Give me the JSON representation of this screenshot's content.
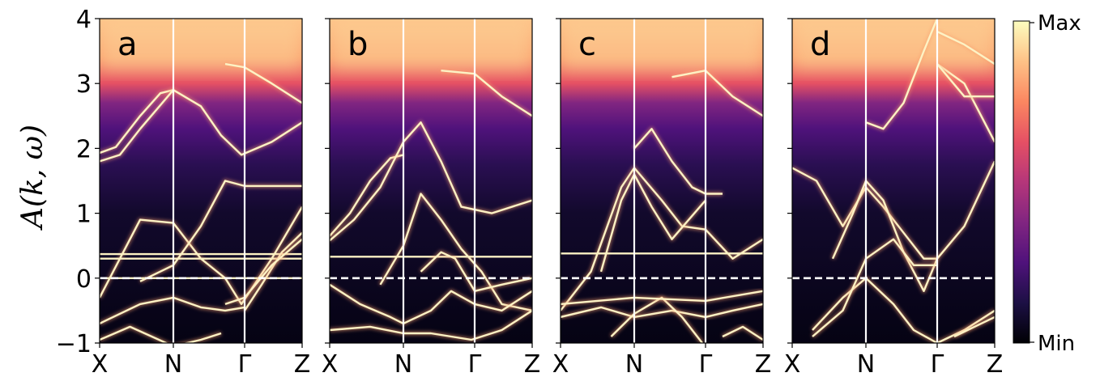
{
  "figure": {
    "ylabel": "A(k, ω)",
    "colorbar": {
      "max_label": "Max",
      "min_label": "Min",
      "colormap": "magma",
      "colors": [
        "#000004",
        "#1c1044",
        "#4f127b",
        "#812581",
        "#b5367a",
        "#e55064",
        "#fb8761",
        "#fec287",
        "#fcfdbf"
      ]
    }
  },
  "chart_data": [
    {
      "type": "heatmap",
      "panel_label": "a",
      "ylim": [
        -1,
        4
      ],
      "yticks": [
        "4",
        "3",
        "2",
        "1",
        "0",
        "−1"
      ],
      "xticks": [
        "X",
        "N",
        "Γ",
        "Z"
      ],
      "xtick_positions": [
        0,
        0.364,
        0.716,
        1
      ],
      "fermi_level": 0,
      "bands": [
        {
          "x": [
            0,
            0.08,
            0.2,
            0.3,
            0.364
          ],
          "y": [
            1.93,
            2.02,
            2.5,
            2.85,
            2.9
          ]
        },
        {
          "x": [
            0,
            0.1,
            0.2,
            0.364,
            0.5,
            0.6,
            0.7,
            0.85,
            1
          ],
          "y": [
            1.8,
            1.9,
            2.3,
            2.9,
            2.65,
            2.2,
            1.9,
            2.1,
            2.4
          ]
        },
        {
          "x": [
            0,
            0.1,
            0.2,
            0.364,
            0.5,
            0.62,
            0.7,
            0.85,
            1
          ],
          "y": [
            -0.3,
            0.3,
            0.9,
            0.85,
            0.3,
            0.0,
            -0.4,
            0.3,
            1.1
          ]
        },
        {
          "x": [
            0.2,
            0.364,
            0.5,
            0.62,
            0.716,
            0.85,
            1
          ],
          "y": [
            -0.05,
            0.2,
            0.8,
            1.5,
            1.42,
            1.42,
            1.42
          ]
        },
        {
          "x": [
            0,
            0.364,
            0.716,
            1
          ],
          "y": [
            0.37,
            0.37,
            0.37,
            0.37
          ]
        },
        {
          "x": [
            0,
            0.364,
            0.716,
            1
          ],
          "y": [
            0.3,
            0.3,
            0.3,
            0.3
          ]
        },
        {
          "x": [
            0,
            0.364,
            0.716,
            1
          ],
          "y": [
            0.0,
            0.0,
            0.0,
            0.0
          ]
        },
        {
          "x": [
            0.716,
            0.8,
            0.9,
            1
          ],
          "y": [
            -0.5,
            -0.1,
            0.4,
            0.7
          ]
        },
        {
          "x": [
            0.62,
            0.716,
            0.85,
            1
          ],
          "y": [
            -0.4,
            -0.3,
            0.2,
            0.6
          ]
        },
        {
          "x": [
            0,
            0.2,
            0.364,
            0.5,
            0.62,
            0.716
          ],
          "y": [
            -0.7,
            -0.4,
            -0.3,
            -0.45,
            -0.5,
            -0.45
          ]
        },
        {
          "x": [
            0,
            0.15,
            0.364,
            0.5,
            0.6
          ],
          "y": [
            -0.95,
            -0.75,
            -1.05,
            -0.95,
            -0.85
          ]
        },
        {
          "x": [
            0.62,
            0.716,
            0.85,
            1
          ],
          "y": [
            3.3,
            3.25,
            3.0,
            2.7
          ]
        }
      ]
    },
    {
      "type": "heatmap",
      "panel_label": "b",
      "ylim": [
        -1,
        4
      ],
      "yticks": [
        "4",
        "3",
        "2",
        "1",
        "0",
        "−1"
      ],
      "xticks": [
        "X",
        "N",
        "Γ",
        "Z"
      ],
      "xtick_positions": [
        0,
        0.364,
        0.716,
        1
      ],
      "fermi_level": 0,
      "bands": [
        {
          "x": [
            0,
            0.1,
            0.2,
            0.3,
            0.364
          ],
          "y": [
            0.65,
            1.0,
            1.5,
            1.85,
            1.9
          ]
        },
        {
          "x": [
            0,
            0.12,
            0.25,
            0.364,
            0.45,
            0.55,
            0.65,
            0.8,
            1
          ],
          "y": [
            0.58,
            0.9,
            1.4,
            2.1,
            2.4,
            1.8,
            1.1,
            1.0,
            1.2
          ]
        },
        {
          "x": [
            0.25,
            0.364,
            0.45,
            0.55,
            0.65,
            0.75,
            0.85,
            1
          ],
          "y": [
            -0.1,
            0.5,
            1.3,
            0.9,
            0.45,
            0.1,
            -0.4,
            -0.5
          ]
        },
        {
          "x": [
            0,
            0.364,
            0.716,
            1
          ],
          "y": [
            0.33,
            0.33,
            0.33,
            0.33
          ]
        },
        {
          "x": [
            0.45,
            0.55,
            0.62,
            0.716,
            0.85,
            1
          ],
          "y": [
            0.1,
            0.4,
            0.3,
            -0.2,
            -0.1,
            0.0
          ]
        },
        {
          "x": [
            0,
            0.15,
            0.3,
            0.364,
            0.5,
            0.6,
            0.716,
            0.85,
            1
          ],
          "y": [
            -0.1,
            -0.4,
            -0.6,
            -0.7,
            -0.5,
            -0.2,
            -0.4,
            -0.5,
            -0.2
          ]
        },
        {
          "x": [
            0,
            0.2,
            0.364,
            0.5,
            0.7,
            0.85,
            1
          ],
          "y": [
            -0.8,
            -0.75,
            -0.85,
            -0.85,
            -0.95,
            -0.8,
            -0.5
          ]
        },
        {
          "x": [
            0.55,
            0.716,
            0.85,
            1
          ],
          "y": [
            3.2,
            3.15,
            2.8,
            2.5
          ]
        }
      ]
    },
    {
      "type": "heatmap",
      "panel_label": "c",
      "ylim": [
        -1,
        4
      ],
      "yticks": [
        "4",
        "3",
        "2",
        "1",
        "0",
        "−1"
      ],
      "xticks": [
        "X",
        "N",
        "Γ",
        "Z"
      ],
      "xtick_positions": [
        0,
        0.364,
        0.716,
        1
      ],
      "fermi_level": 0,
      "bands": [
        {
          "x": [
            0,
            0.15,
            0.3,
            0.364,
            0.5,
            0.6,
            0.716,
            0.85,
            1
          ],
          "y": [
            -0.5,
            0.1,
            1.4,
            1.7,
            1.2,
            0.8,
            0.75,
            0.3,
            0.6
          ]
        },
        {
          "x": [
            0.2,
            0.3,
            0.364,
            0.45,
            0.55,
            0.716
          ],
          "y": [
            0.1,
            1.2,
            1.6,
            1.1,
            0.6,
            1.2
          ]
        },
        {
          "x": [
            0.364,
            0.45,
            0.55,
            0.65,
            0.716,
            0.8
          ],
          "y": [
            2.0,
            2.3,
            1.8,
            1.4,
            1.3,
            1.3
          ]
        },
        {
          "x": [
            0,
            0.364,
            0.716,
            1
          ],
          "y": [
            0.38,
            0.38,
            0.38,
            0.38
          ]
        },
        {
          "x": [
            0,
            0.2,
            0.364,
            0.55,
            0.716,
            0.85,
            1
          ],
          "y": [
            -0.6,
            -0.45,
            -0.6,
            -0.5,
            -0.6,
            -0.5,
            -0.4
          ]
        },
        {
          "x": [
            0.25,
            0.364,
            0.5,
            0.6,
            0.7
          ],
          "y": [
            -0.9,
            -0.55,
            -0.3,
            -0.6,
            -1.0
          ]
        },
        {
          "x": [
            0,
            0.364,
            0.716,
            1
          ],
          "y": [
            -0.4,
            -0.3,
            -0.35,
            -0.2
          ]
        },
        {
          "x": [
            0.55,
            0.716,
            0.85,
            1
          ],
          "y": [
            3.1,
            3.2,
            2.8,
            2.5
          ]
        },
        {
          "x": [
            0.8,
            0.9,
            1
          ],
          "y": [
            -0.9,
            -0.75,
            -0.95
          ]
        }
      ]
    },
    {
      "type": "heatmap",
      "panel_label": "d",
      "ylim": [
        -1,
        4
      ],
      "yticks": [
        "4",
        "3",
        "2",
        "1",
        "0",
        "−1"
      ],
      "xticks": [
        "X",
        "N",
        "Γ",
        "Z"
      ],
      "xtick_positions": [
        0,
        0.364,
        0.716,
        1
      ],
      "fermi_level": 0,
      "bands": [
        {
          "x": [
            0,
            0.12,
            0.25,
            0.364,
            0.45,
            0.55,
            0.65,
            0.716,
            0.85,
            1
          ],
          "y": [
            1.7,
            1.5,
            0.8,
            1.4,
            1.1,
            0.7,
            0.3,
            0.3,
            0.8,
            1.8
          ]
        },
        {
          "x": [
            0.2,
            0.3,
            0.364,
            0.45,
            0.55,
            0.65,
            0.716
          ],
          "y": [
            0.3,
            1.0,
            1.5,
            1.2,
            0.4,
            -0.2,
            0.3
          ]
        },
        {
          "x": [
            0.1,
            0.25,
            0.364,
            0.5,
            0.6,
            0.716,
            0.85,
            1
          ],
          "y": [
            -0.8,
            -0.3,
            0.0,
            -0.4,
            -0.8,
            -1.0,
            -0.8,
            -0.5
          ]
        },
        {
          "x": [
            0.1,
            0.25,
            0.364,
            0.5,
            0.6,
            0.716
          ],
          "y": [
            -0.9,
            -0.5,
            0.3,
            0.6,
            0.2,
            0.2
          ]
        },
        {
          "x": [
            0.716,
            0.85,
            1
          ],
          "y": [
            3.3,
            3.0,
            2.1
          ]
        },
        {
          "x": [
            0.716,
            0.85,
            1
          ],
          "y": [
            3.8,
            3.6,
            3.3
          ]
        },
        {
          "x": [
            0.716,
            0.85,
            1
          ],
          "y": [
            3.3,
            2.8,
            2.8
          ]
        },
        {
          "x": [
            0.364,
            0.45,
            0.55,
            0.65,
            0.716
          ],
          "y": [
            2.4,
            2.3,
            2.7,
            3.5,
            4.0
          ]
        },
        {
          "x": [
            0.8,
            0.9,
            1
          ],
          "y": [
            -0.9,
            -0.75,
            -0.6
          ]
        }
      ]
    }
  ]
}
